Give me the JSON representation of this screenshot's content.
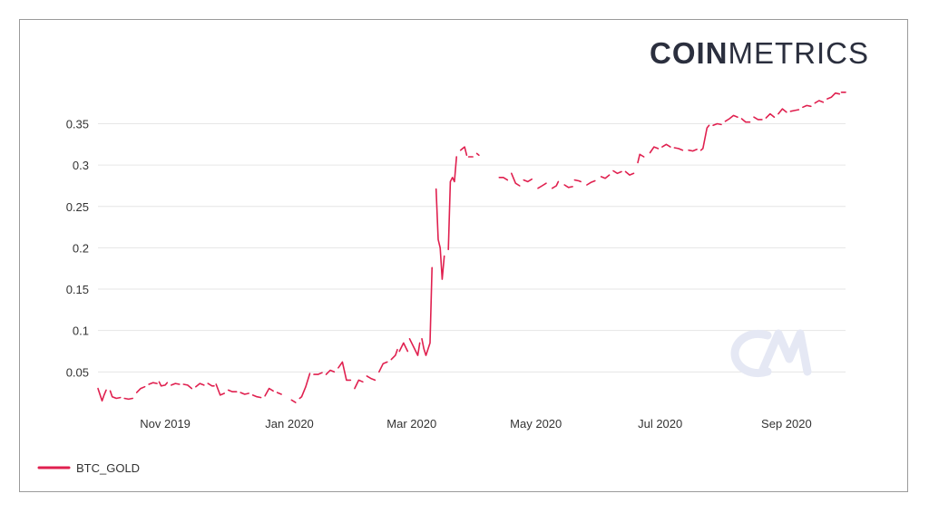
{
  "brand": {
    "part1": "COIN",
    "part2": "METRICS"
  },
  "watermark": {
    "icon": "cm-watermark-icon"
  },
  "colors": {
    "series": "#e0204f",
    "grid": "#e6e6e6",
    "text": "#333333",
    "brand": "#2b2f3e"
  },
  "chart_data": {
    "type": "line",
    "title": "",
    "xlabel": "",
    "ylabel": "",
    "x_range": [
      "2019-09-29",
      "2020-09-30"
    ],
    "ylim": [
      0.012,
      0.39
    ],
    "y_ticks": [
      0.05,
      0.1,
      0.15,
      0.2,
      0.25,
      0.3,
      0.35
    ],
    "y_tick_labels": [
      "0.05",
      "0.1",
      "0.15",
      "0.2",
      "0.25",
      "0.3",
      "0.35"
    ],
    "x_ticks": [
      "2019-11-01",
      "2020-01-01",
      "2020-03-01",
      "2020-05-01",
      "2020-07-01",
      "2020-09-01"
    ],
    "x_tick_labels": [
      "Nov 2019",
      "Jan 2020",
      "Mar 2020",
      "May 2020",
      "Jul 2020",
      "Sep 2020"
    ],
    "grid": true,
    "legend": {
      "position": "bottom-left"
    },
    "series": [
      {
        "name": "BTC_GOLD",
        "color": "#e0204f",
        "segments": [
          [
            [
              "2019-09-29",
              0.03
            ],
            [
              "2019-10-01",
              0.015
            ],
            [
              "2019-10-02",
              0.022
            ],
            [
              "2019-10-03",
              0.028
            ]
          ],
          [
            [
              "2019-10-05",
              0.027
            ],
            [
              "2019-10-06",
              0.02
            ],
            [
              "2019-10-08",
              0.018
            ],
            [
              "2019-10-10",
              0.019
            ]
          ],
          [
            [
              "2019-10-12",
              0.018
            ],
            [
              "2019-10-14",
              0.017
            ],
            [
              "2019-10-16",
              0.018
            ]
          ],
          [
            [
              "2019-10-18",
              0.025
            ],
            [
              "2019-10-20",
              0.03
            ],
            [
              "2019-10-22",
              0.032
            ]
          ],
          [
            [
              "2019-10-24",
              0.035
            ],
            [
              "2019-10-26",
              0.037
            ],
            [
              "2019-10-28",
              0.036
            ]
          ],
          [
            [
              "2019-10-29",
              0.038
            ],
            [
              "2019-10-30",
              0.033
            ],
            [
              "2019-11-01",
              0.034
            ],
            [
              "2019-11-02",
              0.037
            ]
          ],
          [
            [
              "2019-11-04",
              0.034
            ],
            [
              "2019-11-06",
              0.036
            ],
            [
              "2019-11-08",
              0.035
            ]
          ],
          [
            [
              "2019-11-10",
              0.035
            ],
            [
              "2019-11-12",
              0.034
            ],
            [
              "2019-11-14",
              0.03
            ]
          ],
          [
            [
              "2019-11-16",
              0.032
            ],
            [
              "2019-11-18",
              0.036
            ],
            [
              "2019-11-20",
              0.034
            ]
          ],
          [
            [
              "2019-11-22",
              0.036
            ],
            [
              "2019-11-24",
              0.033
            ],
            [
              "2019-11-25",
              0.033
            ]
          ],
          [
            [
              "2019-11-26",
              0.035
            ],
            [
              "2019-11-28",
              0.022
            ],
            [
              "2019-11-30",
              0.024
            ]
          ],
          [
            [
              "2019-12-02",
              0.028
            ],
            [
              "2019-12-04",
              0.026
            ],
            [
              "2019-12-06",
              0.026
            ]
          ],
          [
            [
              "2019-12-08",
              0.025
            ],
            [
              "2019-12-10",
              0.023
            ],
            [
              "2019-12-12",
              0.024
            ]
          ],
          [
            [
              "2019-12-14",
              0.022
            ],
            [
              "2019-12-16",
              0.02
            ],
            [
              "2019-12-18",
              0.019
            ]
          ],
          [
            [
              "2019-12-20",
              0.021
            ],
            [
              "2019-12-22",
              0.03
            ],
            [
              "2019-12-24",
              0.027
            ]
          ],
          [
            [
              "2019-12-26",
              0.025
            ],
            [
              "2019-12-28",
              0.023
            ]
          ],
          [
            [
              "2020-01-02",
              0.016
            ],
            [
              "2020-01-04",
              0.013
            ]
          ],
          [
            [
              "2020-01-06",
              0.018
            ],
            [
              "2020-01-07",
              0.02
            ],
            [
              "2020-01-09",
              0.032
            ],
            [
              "2020-01-11",
              0.048
            ]
          ],
          [
            [
              "2020-01-13",
              0.047
            ],
            [
              "2020-01-15",
              0.047
            ],
            [
              "2020-01-17",
              0.049
            ]
          ],
          [
            [
              "2020-01-19",
              0.047
            ],
            [
              "2020-01-21",
              0.052
            ],
            [
              "2020-01-23",
              0.05
            ]
          ],
          [
            [
              "2020-01-25",
              0.055
            ],
            [
              "2020-01-27",
              0.062
            ],
            [
              "2020-01-29",
              0.04
            ],
            [
              "2020-01-31",
              0.04
            ]
          ],
          [
            [
              "2020-02-02",
              0.03
            ],
            [
              "2020-02-04",
              0.04
            ],
            [
              "2020-02-06",
              0.038
            ]
          ],
          [
            [
              "2020-02-08",
              0.045
            ],
            [
              "2020-02-10",
              0.042
            ],
            [
              "2020-02-12",
              0.04
            ]
          ],
          [
            [
              "2020-02-14",
              0.05
            ],
            [
              "2020-02-16",
              0.06
            ],
            [
              "2020-02-18",
              0.062
            ]
          ],
          [
            [
              "2020-02-20",
              0.065
            ],
            [
              "2020-02-22",
              0.07
            ],
            [
              "2020-02-23",
              0.077
            ]
          ],
          [
            [
              "2020-02-24",
              0.075
            ],
            [
              "2020-02-26",
              0.085
            ],
            [
              "2020-02-28",
              0.075
            ]
          ],
          [
            [
              "2020-02-29",
              0.09
            ],
            [
              "2020-03-02",
              0.08
            ],
            [
              "2020-03-04",
              0.07
            ],
            [
              "2020-03-05",
              0.085
            ]
          ],
          [
            [
              "2020-03-06",
              0.09
            ],
            [
              "2020-03-07",
              0.078
            ],
            [
              "2020-03-08",
              0.07
            ],
            [
              "2020-03-10",
              0.085
            ],
            [
              "2020-03-11",
              0.176
            ]
          ],
          [
            [
              "2020-03-13",
              0.271
            ],
            [
              "2020-03-14",
              0.21
            ],
            [
              "2020-03-15",
              0.2
            ],
            [
              "2020-03-16",
              0.162
            ],
            [
              "2020-03-17",
              0.19
            ]
          ],
          [
            [
              "2020-03-19",
              0.198
            ],
            [
              "2020-03-20",
              0.28
            ],
            [
              "2020-03-21",
              0.285
            ],
            [
              "2020-03-22",
              0.28
            ],
            [
              "2020-03-23",
              0.31
            ]
          ],
          [
            [
              "2020-03-25",
              0.318
            ],
            [
              "2020-03-27",
              0.322
            ],
            [
              "2020-03-28",
              0.312
            ]
          ],
          [
            [
              "2020-03-29",
              0.31
            ],
            [
              "2020-03-31",
              0.31
            ]
          ],
          [
            [
              "2020-04-02",
              0.314
            ],
            [
              "2020-04-03",
              0.312
            ]
          ],
          [
            [
              "2020-04-13",
              0.285
            ],
            [
              "2020-04-15",
              0.285
            ],
            [
              "2020-04-17",
              0.282
            ]
          ],
          [
            [
              "2020-04-19",
              0.29
            ],
            [
              "2020-04-21",
              0.278
            ],
            [
              "2020-04-23",
              0.275
            ]
          ],
          [
            [
              "2020-04-25",
              0.282
            ],
            [
              "2020-04-27",
              0.28
            ],
            [
              "2020-04-29",
              0.283
            ]
          ],
          [
            [
              "2020-05-02",
              0.272
            ],
            [
              "2020-05-04",
              0.275
            ],
            [
              "2020-05-06",
              0.278
            ]
          ],
          [
            [
              "2020-05-09",
              0.272
            ],
            [
              "2020-05-11",
              0.275
            ],
            [
              "2020-05-12",
              0.28
            ]
          ],
          [
            [
              "2020-05-15",
              0.276
            ],
            [
              "2020-05-17",
              0.273
            ],
            [
              "2020-05-19",
              0.274
            ]
          ],
          [
            [
              "2020-05-20",
              0.282
            ],
            [
              "2020-05-22",
              0.281
            ],
            [
              "2020-05-23",
              0.28
            ]
          ],
          [
            [
              "2020-05-26",
              0.276
            ],
            [
              "2020-05-28",
              0.279
            ],
            [
              "2020-05-30",
              0.281
            ]
          ],
          [
            [
              "2020-06-02",
              0.286
            ],
            [
              "2020-06-04",
              0.284
            ],
            [
              "2020-06-06",
              0.288
            ]
          ],
          [
            [
              "2020-06-08",
              0.293
            ],
            [
              "2020-06-10",
              0.29
            ],
            [
              "2020-06-12",
              0.292
            ]
          ],
          [
            [
              "2020-06-14",
              0.292
            ],
            [
              "2020-06-16",
              0.288
            ],
            [
              "2020-06-18",
              0.29
            ]
          ],
          [
            [
              "2020-06-20",
              0.303
            ],
            [
              "2020-06-21",
              0.313
            ],
            [
              "2020-06-23",
              0.31
            ]
          ],
          [
            [
              "2020-06-26",
              0.315
            ],
            [
              "2020-06-28",
              0.322
            ],
            [
              "2020-06-30",
              0.32
            ]
          ],
          [
            [
              "2020-07-02",
              0.322
            ],
            [
              "2020-07-04",
              0.325
            ],
            [
              "2020-07-06",
              0.322
            ]
          ],
          [
            [
              "2020-07-08",
              0.321
            ],
            [
              "2020-07-10",
              0.32
            ],
            [
              "2020-07-12",
              0.318
            ]
          ],
          [
            [
              "2020-07-15",
              0.318
            ],
            [
              "2020-07-17",
              0.317
            ],
            [
              "2020-07-19",
              0.319
            ]
          ],
          [
            [
              "2020-07-21",
              0.318
            ],
            [
              "2020-07-22",
              0.32
            ],
            [
              "2020-07-24",
              0.345
            ],
            [
              "2020-07-25",
              0.348
            ]
          ],
          [
            [
              "2020-07-27",
              0.348
            ],
            [
              "2020-07-29",
              0.35
            ],
            [
              "2020-07-31",
              0.349
            ]
          ],
          [
            [
              "2020-08-02",
              0.353
            ],
            [
              "2020-08-04",
              0.356
            ],
            [
              "2020-08-06",
              0.36
            ],
            [
              "2020-08-08",
              0.358
            ]
          ],
          [
            [
              "2020-08-10",
              0.356
            ],
            [
              "2020-08-12",
              0.352
            ],
            [
              "2020-08-14",
              0.352
            ]
          ],
          [
            [
              "2020-08-16",
              0.358
            ],
            [
              "2020-08-18",
              0.355
            ],
            [
              "2020-08-20",
              0.355
            ]
          ],
          [
            [
              "2020-08-22",
              0.357
            ],
            [
              "2020-08-24",
              0.362
            ],
            [
              "2020-08-26",
              0.358
            ]
          ],
          [
            [
              "2020-08-28",
              0.362
            ],
            [
              "2020-08-30",
              0.368
            ],
            [
              "2020-09-01",
              0.364
            ]
          ],
          [
            [
              "2020-09-03",
              0.365
            ],
            [
              "2020-09-05",
              0.366
            ],
            [
              "2020-09-07",
              0.367
            ]
          ],
          [
            [
              "2020-09-09",
              0.37
            ],
            [
              "2020-09-11",
              0.372
            ],
            [
              "2020-09-13",
              0.371
            ]
          ],
          [
            [
              "2020-09-15",
              0.375
            ],
            [
              "2020-09-17",
              0.378
            ],
            [
              "2020-09-19",
              0.376
            ]
          ],
          [
            [
              "2020-09-21",
              0.38
            ],
            [
              "2020-09-23",
              0.382
            ],
            [
              "2020-09-25",
              0.387
            ],
            [
              "2020-09-27",
              0.386
            ]
          ],
          [
            [
              "2020-09-28",
              0.388
            ],
            [
              "2020-09-30",
              0.388
            ]
          ]
        ]
      }
    ]
  }
}
